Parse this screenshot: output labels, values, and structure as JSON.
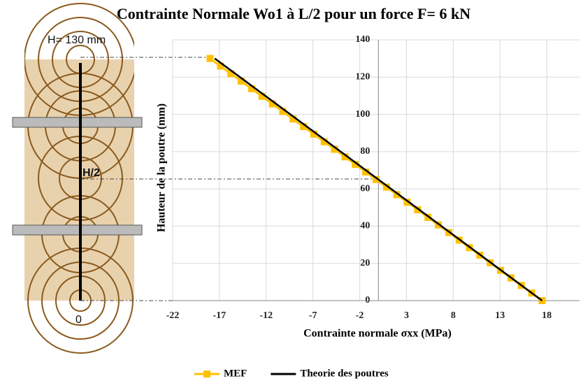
{
  "chart_data": {
    "type": "line",
    "title": "Contrainte Normale Wo1 à L/2 pour un force F= 6 kN",
    "x_label": "Contrainte normale σxx  (MPa)",
    "y_label": "Hauteur de la poutre (mm)",
    "annotations": [
      "H= 130 mm",
      "H/2",
      "0"
    ],
    "xlim": [
      -22,
      21.5
    ],
    "ylim": [
      0,
      140
    ],
    "xticks": [
      -22,
      -17,
      -12,
      -7,
      -2,
      3,
      8,
      13,
      18
    ],
    "yticks": [
      0,
      20,
      40,
      60,
      80,
      100,
      120,
      140
    ],
    "grid": true,
    "series": [
      {
        "name": "MEF",
        "color": "#ffc000",
        "marker": "square",
        "x": [
          -18.0,
          -16.89,
          -15.78,
          -14.67,
          -13.56,
          -12.45,
          -11.34,
          -10.23,
          -9.13,
          -8.02,
          -6.91,
          -5.8,
          -4.69,
          -3.58,
          -2.47,
          -1.36,
          -0.25,
          0.86,
          1.97,
          3.08,
          4.19,
          5.3,
          6.41,
          7.52,
          8.63,
          9.73,
          10.84,
          11.95,
          13.06,
          14.17,
          15.28,
          16.39,
          17.5
        ],
        "values": [
          130,
          125.94,
          121.88,
          117.81,
          113.75,
          109.69,
          105.63,
          101.56,
          97.5,
          93.44,
          89.38,
          85.31,
          81.25,
          77.19,
          73.13,
          69.06,
          65,
          60.94,
          56.88,
          52.81,
          48.75,
          44.69,
          40.63,
          36.56,
          32.5,
          28.44,
          24.38,
          20.31,
          16.25,
          12.19,
          8.13,
          4.06,
          0
        ]
      },
      {
        "name": "Theorie des poutres",
        "color": "#000000",
        "marker": "none",
        "x": [
          -17.5,
          17.5
        ],
        "values": [
          130,
          0
        ]
      }
    ]
  }
}
